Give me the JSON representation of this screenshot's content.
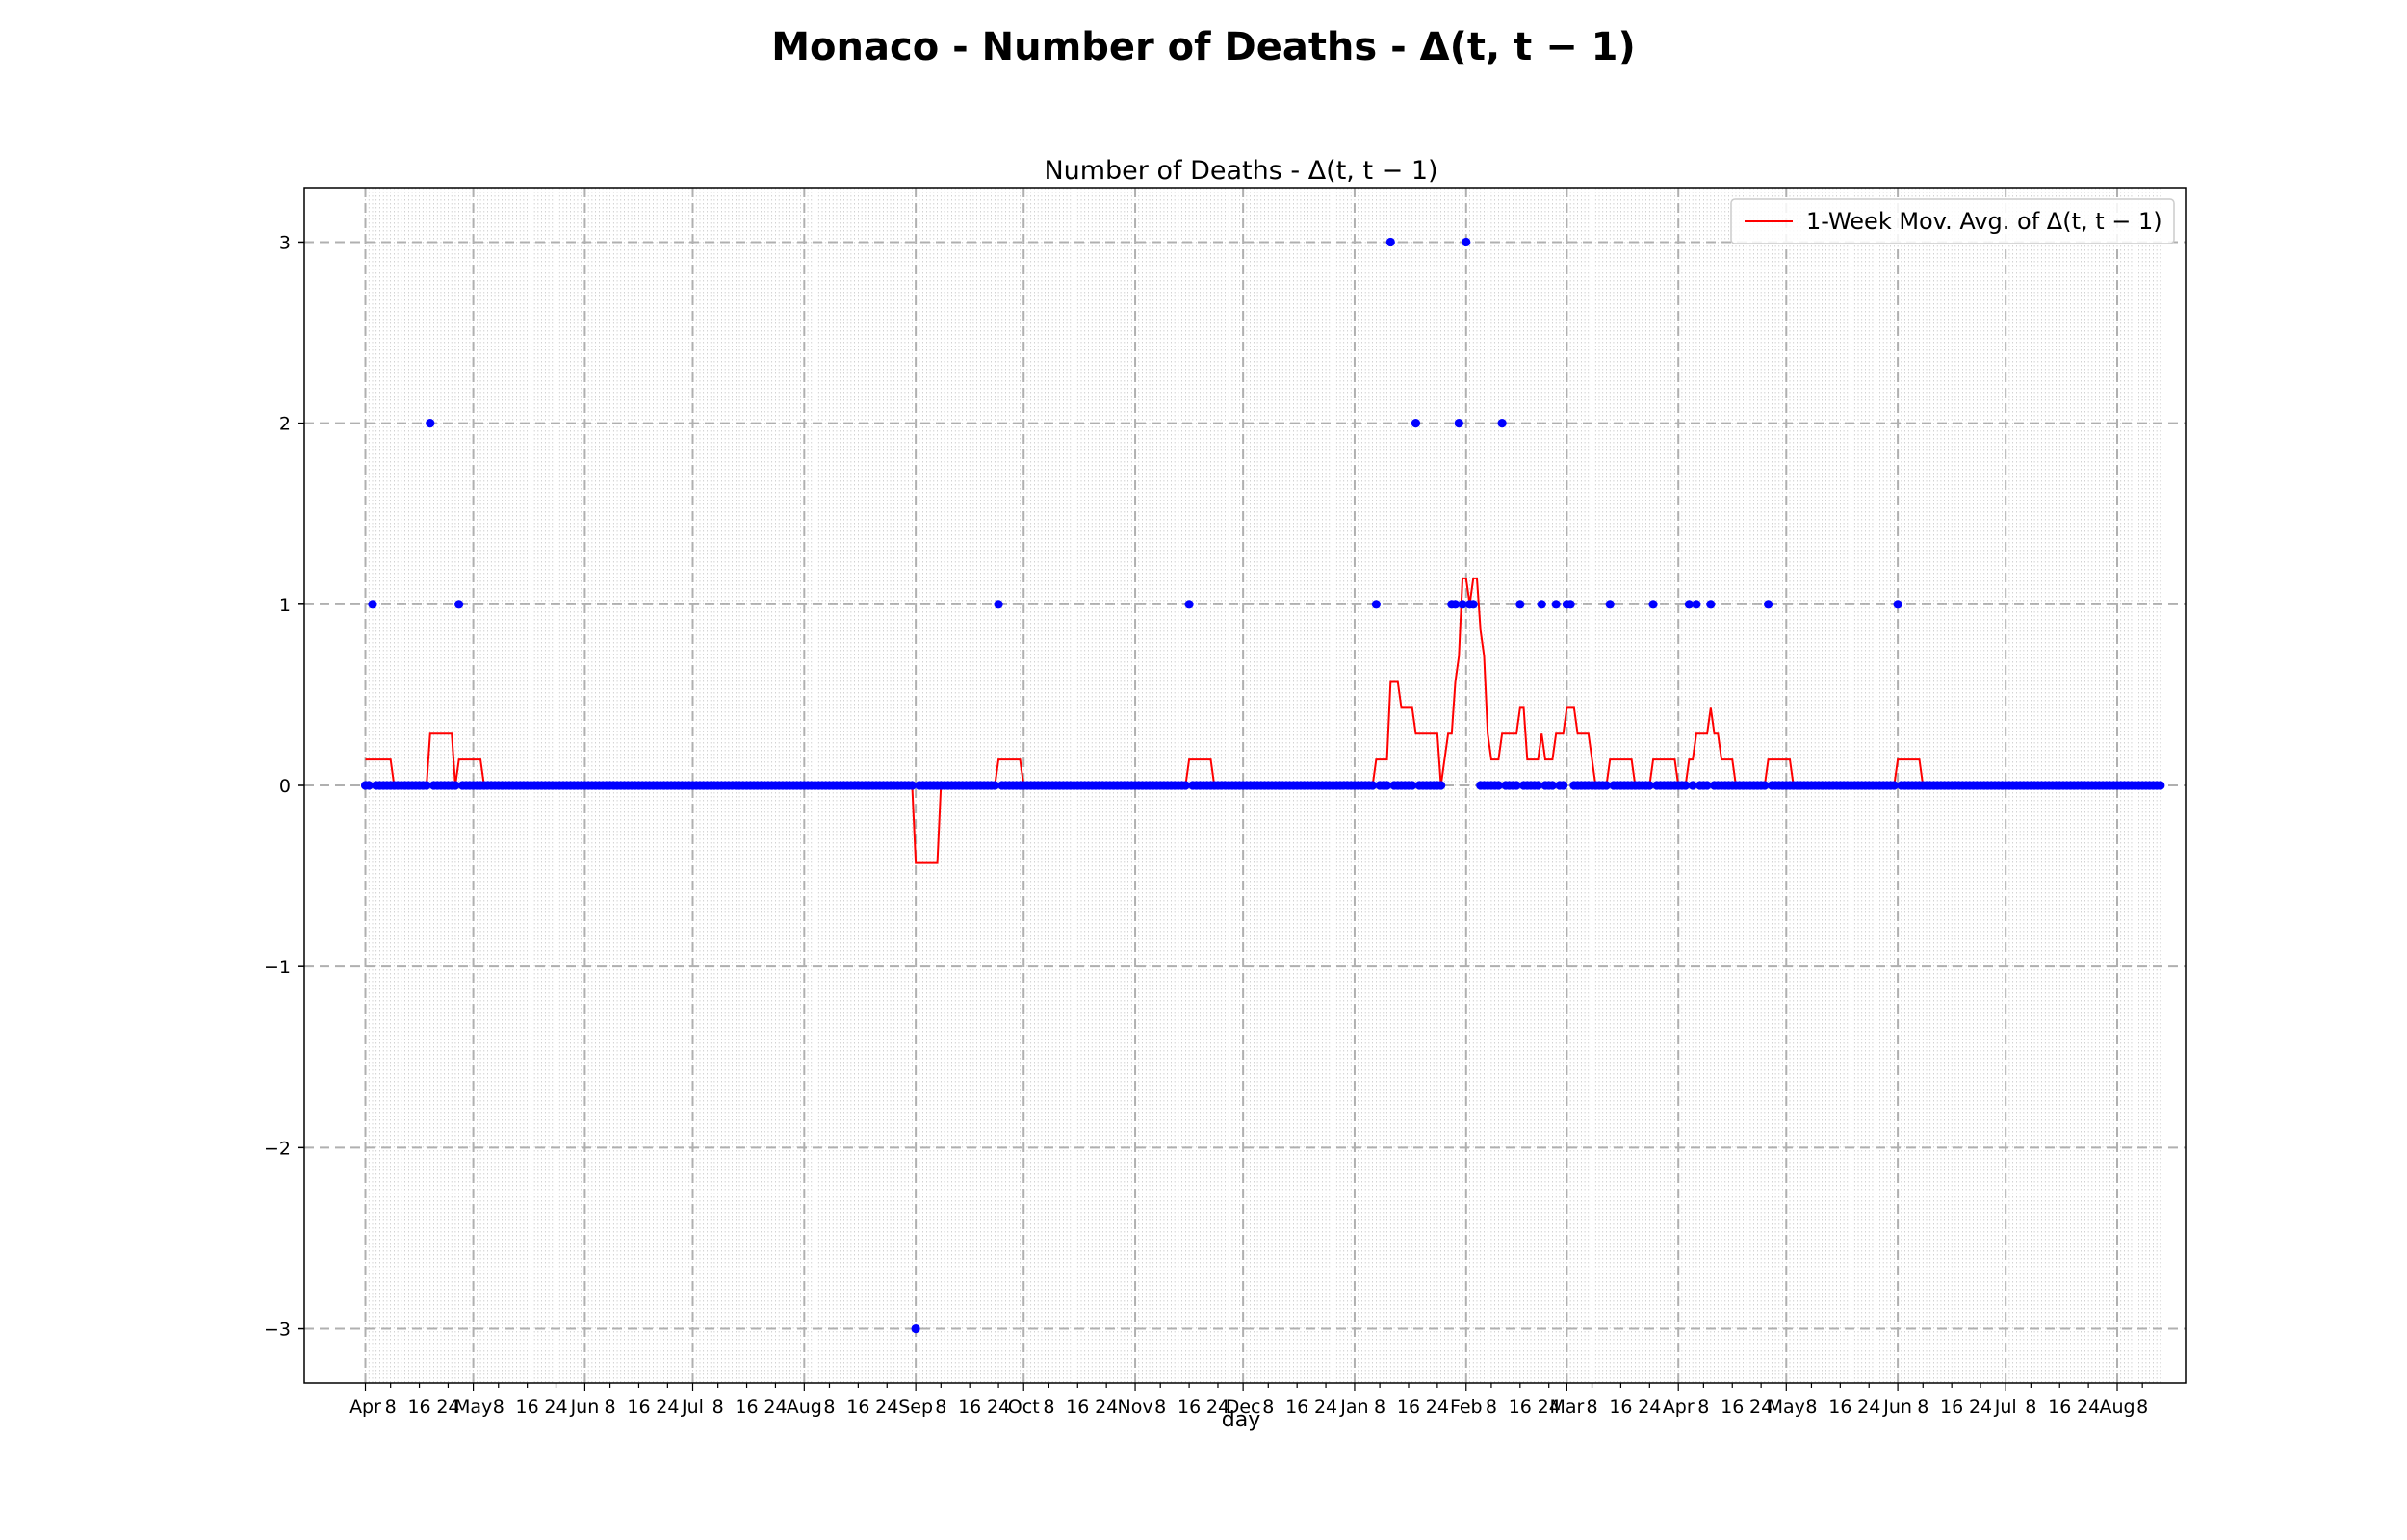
{
  "chart_data": {
    "type": "scatter",
    "suptitle": "Monaco - Number of Deaths - Δ(t, t − 1)",
    "title": "Number of Deaths - Δ(t, t − 1)",
    "xlabel": "day",
    "ylabel": "",
    "x_range": [
      "2020-04-01",
      "2021-08-13"
    ],
    "ylim": [
      -3.3,
      3.3
    ],
    "yticks": [
      -3,
      -2,
      -1,
      0,
      1,
      2,
      3
    ],
    "ytick_labels": [
      "−3",
      "−2",
      "−1",
      "0",
      "1",
      "2",
      "3"
    ],
    "grid": {
      "major": "dashed",
      "minor": "dotted"
    },
    "legend": {
      "placement": "upper right",
      "entries": [
        "1-Week Mov. Avg. of Δ(t, t − 1)"
      ]
    },
    "colors": {
      "points": "#0000ff",
      "moving_avg": "#ff0000",
      "grid": "#b0b0b0"
    },
    "series": [
      {
        "role": "daily_delta",
        "nonzero_points": [
          {
            "x": "2020-04-03",
            "y": 1
          },
          {
            "x": "2020-04-19",
            "y": 2
          },
          {
            "x": "2020-04-27",
            "y": 1
          },
          {
            "x": "2020-09-01",
            "y": -3
          },
          {
            "x": "2020-09-24",
            "y": 1
          },
          {
            "x": "2020-11-16",
            "y": 1
          },
          {
            "x": "2021-01-07",
            "y": 1
          },
          {
            "x": "2021-01-11",
            "y": 3
          },
          {
            "x": "2021-01-18",
            "y": 2
          },
          {
            "x": "2021-01-28",
            "y": 1
          },
          {
            "x": "2021-01-29",
            "y": 1
          },
          {
            "x": "2021-01-30",
            "y": 2
          },
          {
            "x": "2021-01-31",
            "y": 1
          },
          {
            "x": "2021-02-01",
            "y": 3
          },
          {
            "x": "2021-02-02",
            "y": 1
          },
          {
            "x": "2021-02-03",
            "y": 1
          },
          {
            "x": "2021-02-11",
            "y": 2
          },
          {
            "x": "2021-02-16",
            "y": 1
          },
          {
            "x": "2021-02-22",
            "y": 1
          },
          {
            "x": "2021-02-26",
            "y": 1
          },
          {
            "x": "2021-03-01",
            "y": 1
          },
          {
            "x": "2021-03-02",
            "y": 1
          },
          {
            "x": "2021-03-13",
            "y": 1
          },
          {
            "x": "2021-03-25",
            "y": 1
          },
          {
            "x": "2021-04-04",
            "y": 1
          },
          {
            "x": "2021-04-06",
            "y": 1
          },
          {
            "x": "2021-04-10",
            "y": 1
          },
          {
            "x": "2021-04-26",
            "y": 1
          },
          {
            "x": "2021-06-01",
            "y": 1
          }
        ],
        "other_days_value": 0,
        "gaps": [
          [
            "2021-01-26",
            "2021-01-27"
          ],
          [
            "2021-02-04",
            "2021-02-04"
          ]
        ]
      },
      {
        "name": "1-Week Mov. Avg. of Δ(t, t − 1)",
        "role": "moving_average",
        "points": [
          {
            "x": "2020-04-01",
            "y": 0.1429
          },
          {
            "x": "2020-04-08",
            "y": 0.1429
          },
          {
            "x": "2020-04-09",
            "y": 0
          },
          {
            "x": "2020-04-18",
            "y": 0
          },
          {
            "x": "2020-04-19",
            "y": 0.2857
          },
          {
            "x": "2020-04-25",
            "y": 0.2857
          },
          {
            "x": "2020-04-26",
            "y": 0
          },
          {
            "x": "2020-04-27",
            "y": 0.1429
          },
          {
            "x": "2020-05-03",
            "y": 0.1429
          },
          {
            "x": "2020-05-04",
            "y": 0
          },
          {
            "x": "2020-08-31",
            "y": 0
          },
          {
            "x": "2020-09-01",
            "y": -0.4286
          },
          {
            "x": "2020-09-07",
            "y": -0.4286
          },
          {
            "x": "2020-09-08",
            "y": 0
          },
          {
            "x": "2020-09-23",
            "y": 0
          },
          {
            "x": "2020-09-24",
            "y": 0.1429
          },
          {
            "x": "2020-09-30",
            "y": 0.1429
          },
          {
            "x": "2020-10-01",
            "y": 0
          },
          {
            "x": "2020-11-15",
            "y": 0
          },
          {
            "x": "2020-11-16",
            "y": 0.1429
          },
          {
            "x": "2020-11-22",
            "y": 0.1429
          },
          {
            "x": "2020-11-23",
            "y": 0
          },
          {
            "x": "2021-01-06",
            "y": 0
          },
          {
            "x": "2021-01-07",
            "y": 0.1429
          },
          {
            "x": "2021-01-10",
            "y": 0.1429
          },
          {
            "x": "2021-01-11",
            "y": 0.5714
          },
          {
            "x": "2021-01-13",
            "y": 0.5714
          },
          {
            "x": "2021-01-14",
            "y": 0.4286
          },
          {
            "x": "2021-01-17",
            "y": 0.4286
          },
          {
            "x": "2021-01-18",
            "y": 0.2857
          },
          {
            "x": "2021-01-24",
            "y": 0.2857
          },
          {
            "x": "2021-01-25",
            "y": 0
          },
          {
            "x": "2021-01-26",
            "y": 0.1429
          },
          {
            "x": "2021-01-27",
            "y": 0.2857
          },
          {
            "x": "2021-01-28",
            "y": 0.2857
          },
          {
            "x": "2021-01-29",
            "y": 0.5714
          },
          {
            "x": "2021-01-30",
            "y": 0.7143
          },
          {
            "x": "2021-01-31",
            "y": 1.1429
          },
          {
            "x": "2021-02-01",
            "y": 1.1429
          },
          {
            "x": "2021-02-02",
            "y": 1.0
          },
          {
            "x": "2021-02-03",
            "y": 1.1429
          },
          {
            "x": "2021-02-04",
            "y": 1.1429
          },
          {
            "x": "2021-02-05",
            "y": 0.8571
          },
          {
            "x": "2021-02-06",
            "y": 0.7143
          },
          {
            "x": "2021-02-07",
            "y": 0.2857
          },
          {
            "x": "2021-02-08",
            "y": 0.1429
          },
          {
            "x": "2021-02-10",
            "y": 0.1429
          },
          {
            "x": "2021-02-11",
            "y": 0.2857
          },
          {
            "x": "2021-02-15",
            "y": 0.2857
          },
          {
            "x": "2021-02-16",
            "y": 0.4286
          },
          {
            "x": "2021-02-17",
            "y": 0.4286
          },
          {
            "x": "2021-02-18",
            "y": 0.1429
          },
          {
            "x": "2021-02-21",
            "y": 0.1429
          },
          {
            "x": "2021-02-22",
            "y": 0.2857
          },
          {
            "x": "2021-02-23",
            "y": 0.1429
          },
          {
            "x": "2021-02-25",
            "y": 0.1429
          },
          {
            "x": "2021-02-26",
            "y": 0.2857
          },
          {
            "x": "2021-02-28",
            "y": 0.2857
          },
          {
            "x": "2021-03-01",
            "y": 0.4286
          },
          {
            "x": "2021-03-03",
            "y": 0.4286
          },
          {
            "x": "2021-03-04",
            "y": 0.2857
          },
          {
            "x": "2021-03-07",
            "y": 0.2857
          },
          {
            "x": "2021-03-08",
            "y": 0.1429
          },
          {
            "x": "2021-03-09",
            "y": 0
          },
          {
            "x": "2021-03-12",
            "y": 0
          },
          {
            "x": "2021-03-13",
            "y": 0.1429
          },
          {
            "x": "2021-03-19",
            "y": 0.1429
          },
          {
            "x": "2021-03-20",
            "y": 0
          },
          {
            "x": "2021-03-24",
            "y": 0
          },
          {
            "x": "2021-03-25",
            "y": 0.1429
          },
          {
            "x": "2021-03-31",
            "y": 0.1429
          },
          {
            "x": "2021-04-01",
            "y": 0
          },
          {
            "x": "2021-04-03",
            "y": 0
          },
          {
            "x": "2021-04-04",
            "y": 0.1429
          },
          {
            "x": "2021-04-05",
            "y": 0.1429
          },
          {
            "x": "2021-04-06",
            "y": 0.2857
          },
          {
            "x": "2021-04-09",
            "y": 0.2857
          },
          {
            "x": "2021-04-10",
            "y": 0.4286
          },
          {
            "x": "2021-04-11",
            "y": 0.2857
          },
          {
            "x": "2021-04-12",
            "y": 0.2857
          },
          {
            "x": "2021-04-13",
            "y": 0.1429
          },
          {
            "x": "2021-04-16",
            "y": 0.1429
          },
          {
            "x": "2021-04-17",
            "y": 0
          },
          {
            "x": "2021-04-25",
            "y": 0
          },
          {
            "x": "2021-04-26",
            "y": 0.1429
          },
          {
            "x": "2021-05-02",
            "y": 0.1429
          },
          {
            "x": "2021-05-03",
            "y": 0
          },
          {
            "x": "2021-05-31",
            "y": 0
          },
          {
            "x": "2021-06-01",
            "y": 0.1429
          },
          {
            "x": "2021-06-07",
            "y": 0.1429
          },
          {
            "x": "2021-06-08",
            "y": 0
          },
          {
            "x": "2021-08-13",
            "y": 0
          }
        ]
      }
    ],
    "x_tick_labels": [
      {
        "date": "2020-04-01",
        "label": "Apr",
        "major": true
      },
      {
        "date": "2020-04-08",
        "label": "8"
      },
      {
        "date": "2020-04-16",
        "label": "16"
      },
      {
        "date": "2020-04-24",
        "label": "24"
      },
      {
        "date": "2020-05-01",
        "label": "May",
        "major": true
      },
      {
        "date": "2020-05-08",
        "label": "8"
      },
      {
        "date": "2020-05-16",
        "label": "16"
      },
      {
        "date": "2020-05-24",
        "label": "24"
      },
      {
        "date": "2020-06-01",
        "label": "Jun",
        "major": true
      },
      {
        "date": "2020-06-08",
        "label": "8"
      },
      {
        "date": "2020-06-16",
        "label": "16"
      },
      {
        "date": "2020-06-24",
        "label": "24"
      },
      {
        "date": "2020-07-01",
        "label": "Jul",
        "major": true
      },
      {
        "date": "2020-07-08",
        "label": "8"
      },
      {
        "date": "2020-07-16",
        "label": "16"
      },
      {
        "date": "2020-07-24",
        "label": "24"
      },
      {
        "date": "2020-08-01",
        "label": "Aug",
        "major": true
      },
      {
        "date": "2020-08-08",
        "label": "8"
      },
      {
        "date": "2020-08-16",
        "label": "16"
      },
      {
        "date": "2020-08-24",
        "label": "24"
      },
      {
        "date": "2020-09-01",
        "label": "Sep",
        "major": true
      },
      {
        "date": "2020-09-08",
        "label": "8"
      },
      {
        "date": "2020-09-16",
        "label": "16"
      },
      {
        "date": "2020-09-24",
        "label": "24"
      },
      {
        "date": "2020-10-01",
        "label": "Oct",
        "major": true
      },
      {
        "date": "2020-10-08",
        "label": "8"
      },
      {
        "date": "2020-10-16",
        "label": "16"
      },
      {
        "date": "2020-10-24",
        "label": "24"
      },
      {
        "date": "2020-11-01",
        "label": "Nov",
        "major": true
      },
      {
        "date": "2020-11-08",
        "label": "8"
      },
      {
        "date": "2020-11-16",
        "label": "16"
      },
      {
        "date": "2020-11-24",
        "label": "24"
      },
      {
        "date": "2020-12-01",
        "label": "Dec",
        "major": true
      },
      {
        "date": "2020-12-08",
        "label": "8"
      },
      {
        "date": "2020-12-16",
        "label": "16"
      },
      {
        "date": "2020-12-24",
        "label": "24"
      },
      {
        "date": "2021-01-01",
        "label": "Jan",
        "major": true
      },
      {
        "date": "2021-01-08",
        "label": "8"
      },
      {
        "date": "2021-01-16",
        "label": "16"
      },
      {
        "date": "2021-01-24",
        "label": "24"
      },
      {
        "date": "2021-02-01",
        "label": "Feb",
        "major": true
      },
      {
        "date": "2021-02-08",
        "label": "8"
      },
      {
        "date": "2021-02-16",
        "label": "16"
      },
      {
        "date": "2021-02-24",
        "label": "24"
      },
      {
        "date": "2021-03-01",
        "label": "Mar",
        "major": true
      },
      {
        "date": "2021-03-08",
        "label": "8"
      },
      {
        "date": "2021-03-16",
        "label": "16"
      },
      {
        "date": "2021-03-24",
        "label": "24"
      },
      {
        "date": "2021-04-01",
        "label": "Apr",
        "major": true
      },
      {
        "date": "2021-04-08",
        "label": "8"
      },
      {
        "date": "2021-04-16",
        "label": "16"
      },
      {
        "date": "2021-04-24",
        "label": "24"
      },
      {
        "date": "2021-05-01",
        "label": "May",
        "major": true
      },
      {
        "date": "2021-05-08",
        "label": "8"
      },
      {
        "date": "2021-05-16",
        "label": "16"
      },
      {
        "date": "2021-05-24",
        "label": "24"
      },
      {
        "date": "2021-06-01",
        "label": "Jun",
        "major": true
      },
      {
        "date": "2021-06-08",
        "label": "8"
      },
      {
        "date": "2021-06-16",
        "label": "16"
      },
      {
        "date": "2021-06-24",
        "label": "24"
      },
      {
        "date": "2021-07-01",
        "label": "Jul",
        "major": true
      },
      {
        "date": "2021-07-08",
        "label": "8"
      },
      {
        "date": "2021-07-16",
        "label": "16"
      },
      {
        "date": "2021-07-24",
        "label": "24"
      },
      {
        "date": "2021-08-01",
        "label": "Aug",
        "major": true
      },
      {
        "date": "2021-08-08",
        "label": "8"
      }
    ]
  }
}
